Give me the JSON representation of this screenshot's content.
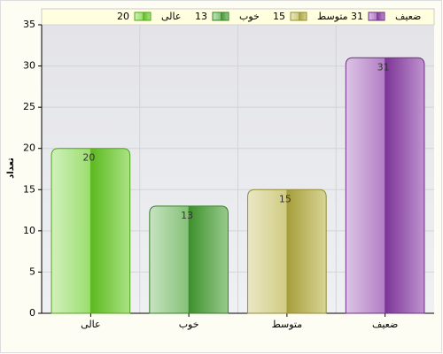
{
  "chart_data": {
    "type": "bar",
    "y_label": "تعداد",
    "categories": [
      "عالی",
      "خوب",
      "متوسط",
      "ضعیف"
    ],
    "values": [
      20,
      13,
      15,
      31
    ],
    "colors": [
      "#66cc22",
      "#44a030",
      "#b8b040",
      "#8a3aa8"
    ],
    "ylim": [
      0,
      35
    ],
    "yticks": [
      0,
      5,
      10,
      15,
      20,
      25,
      30,
      35
    ],
    "grid": true,
    "legend": "top"
  }
}
